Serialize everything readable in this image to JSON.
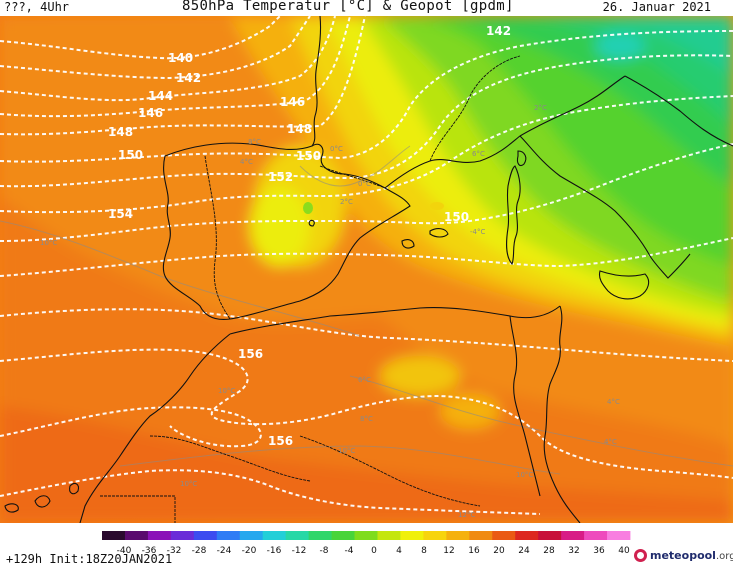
{
  "header": {
    "left": "???, 4Uhr",
    "title": "850hPa Temperatur [°C] & Geopot [gpdm]",
    "date": "26. Januar 2021"
  },
  "footer": {
    "run_info": "+129h  Init:18Z20JAN2021",
    "logo_name": "meteopool",
    "logo_tld": ".org"
  },
  "colorbar": {
    "ticks": [
      "-40",
      "-36",
      "-32",
      "-28",
      "-24",
      "-20",
      "-16",
      "-12",
      "-8",
      "-4",
      "0",
      "4",
      "8",
      "12",
      "16",
      "20",
      "24",
      "28",
      "32",
      "36",
      "40"
    ],
    "colors": [
      "#2a0a2e",
      "#5a0a6e",
      "#8a12b8",
      "#6a2cd8",
      "#3c4cf0",
      "#2f7cf5",
      "#25a8ee",
      "#22cfd8",
      "#27d8a6",
      "#2fd66a",
      "#48d43a",
      "#7fdc1c",
      "#c4e60e",
      "#f0f00a",
      "#f7d40d",
      "#f5b10e",
      "#f08a12",
      "#ea5a14",
      "#dd2820",
      "#c8103a",
      "#d81c86",
      "#ee4bbd",
      "#f87ee0"
    ]
  },
  "contour_labels": [
    {
      "text": "140"
    },
    {
      "text": "142"
    },
    {
      "text": "144"
    },
    {
      "text": "146"
    },
    {
      "text": "146"
    },
    {
      "text": "148"
    },
    {
      "text": "148"
    },
    {
      "text": "150"
    },
    {
      "text": "150"
    },
    {
      "text": "152"
    },
    {
      "text": "154"
    },
    {
      "text": "150"
    },
    {
      "text": "142"
    },
    {
      "text": "156"
    },
    {
      "text": "156"
    }
  ],
  "isotherm_labels": [
    {
      "text": "10°C"
    },
    {
      "text": "10°C"
    },
    {
      "text": "0°C"
    },
    {
      "text": "2°C"
    },
    {
      "text": "0°C"
    },
    {
      "text": "8°C"
    },
    {
      "text": "4°C"
    },
    {
      "text": "6°C"
    },
    {
      "text": "10°C"
    },
    {
      "text": "8°C"
    },
    {
      "text": "4°C"
    },
    {
      "text": "4°C"
    },
    {
      "text": "10°C"
    },
    {
      "text": "10°C"
    },
    {
      "text": "12°C"
    },
    {
      "text": "6°C"
    },
    {
      "text": "2°C"
    },
    {
      "text": "-4°C"
    }
  ]
}
